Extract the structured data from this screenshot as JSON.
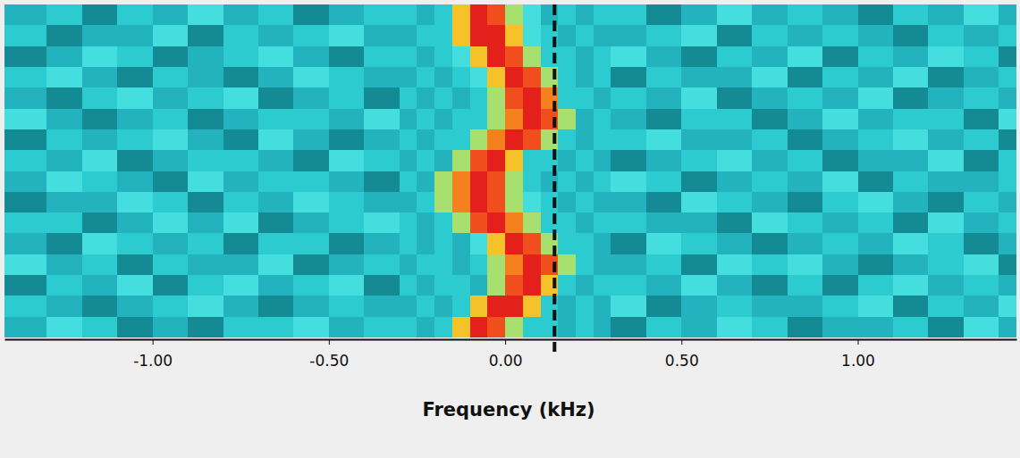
{
  "chart_data": {
    "type": "heatmap",
    "x_label": "Frequency (kHz)",
    "xlim": [
      -1.42,
      1.45
    ],
    "xticks": [
      {
        "value": -1,
        "label": "-1.00"
      },
      {
        "value": -0.5,
        "label": "-0.50"
      },
      {
        "value": 0,
        "label": "0.00"
      },
      {
        "value": 0.5,
        "label": "0.50"
      },
      {
        "value": 1,
        "label": "1.00"
      }
    ],
    "ylim": [
      0,
      16
    ],
    "tick_labels": "x",
    "color_range": [
      0,
      10
    ],
    "vline": 0.14,
    "x_edges": [
      -1.42,
      -1.3,
      -1.2,
      -1.1,
      -1.0,
      -0.9,
      -0.8,
      -0.7,
      -0.6,
      -0.5,
      -0.4,
      -0.3,
      -0.25,
      -0.2,
      -0.15,
      -0.1,
      -0.05,
      0,
      0.05,
      0.1,
      0.15,
      0.2,
      0.25,
      0.3,
      0.4,
      0.5,
      0.6,
      0.7,
      0.8,
      0.9,
      1.0,
      1.1,
      1.2,
      1.3,
      1.4,
      1.45
    ],
    "z": [
      [
        2,
        3,
        1,
        3,
        2,
        4,
        2,
        3,
        1,
        2,
        3,
        3,
        2,
        3,
        7,
        10,
        9,
        5,
        4,
        2,
        3,
        2,
        3,
        3,
        1,
        2,
        4,
        2,
        3,
        2,
        1,
        3,
        2,
        4,
        2
      ],
      [
        3,
        1,
        2,
        2,
        4,
        1,
        3,
        2,
        3,
        4,
        2,
        2,
        3,
        3,
        7,
        10,
        10,
        7,
        4,
        3,
        2,
        3,
        2,
        2,
        3,
        4,
        1,
        3,
        2,
        3,
        2,
        1,
        3,
        2,
        3
      ],
      [
        1,
        2,
        4,
        3,
        1,
        2,
        3,
        4,
        2,
        1,
        3,
        3,
        2,
        3,
        4,
        7,
        10,
        9,
        5,
        3,
        3,
        2,
        3,
        4,
        2,
        1,
        3,
        2,
        4,
        1,
        3,
        2,
        4,
        3,
        1
      ],
      [
        3,
        4,
        2,
        1,
        3,
        2,
        1,
        2,
        4,
        3,
        2,
        2,
        3,
        2,
        3,
        4,
        7,
        10,
        9,
        5,
        3,
        2,
        3,
        1,
        3,
        2,
        2,
        4,
        1,
        3,
        2,
        4,
        1,
        2,
        3
      ],
      [
        2,
        1,
        3,
        4,
        2,
        3,
        4,
        1,
        2,
        3,
        1,
        3,
        2,
        3,
        2,
        3,
        5,
        9,
        10,
        8,
        3,
        3,
        2,
        3,
        2,
        4,
        1,
        2,
        3,
        2,
        4,
        1,
        2,
        3,
        2
      ],
      [
        4,
        2,
        1,
        2,
        3,
        1,
        2,
        3,
        3,
        2,
        4,
        2,
        3,
        2,
        3,
        3,
        5,
        8,
        10,
        9,
        5,
        2,
        3,
        2,
        1,
        3,
        3,
        1,
        2,
        4,
        2,
        3,
        3,
        1,
        4
      ],
      [
        1,
        3,
        2,
        3,
        4,
        2,
        1,
        4,
        2,
        1,
        2,
        3,
        2,
        3,
        3,
        5,
        8,
        10,
        9,
        5,
        3,
        2,
        3,
        3,
        4,
        2,
        2,
        3,
        1,
        2,
        3,
        4,
        2,
        3,
        1
      ],
      [
        3,
        2,
        4,
        1,
        2,
        3,
        3,
        2,
        1,
        4,
        3,
        2,
        3,
        2,
        5,
        9,
        10,
        7,
        3,
        3,
        2,
        3,
        2,
        1,
        2,
        3,
        4,
        2,
        3,
        1,
        2,
        2,
        4,
        1,
        3
      ],
      [
        2,
        4,
        3,
        2,
        1,
        4,
        2,
        3,
        3,
        2,
        1,
        3,
        2,
        5,
        8,
        10,
        9,
        5,
        3,
        2,
        3,
        2,
        3,
        4,
        3,
        1,
        2,
        3,
        2,
        4,
        1,
        3,
        2,
        2,
        3
      ],
      [
        1,
        2,
        2,
        4,
        3,
        1,
        3,
        2,
        4,
        3,
        2,
        2,
        3,
        5,
        8,
        10,
        9,
        5,
        4,
        3,
        2,
        3,
        2,
        2,
        1,
        4,
        3,
        2,
        1,
        3,
        4,
        2,
        1,
        3,
        2
      ],
      [
        3,
        3,
        1,
        2,
        4,
        2,
        4,
        1,
        2,
        3,
        4,
        3,
        2,
        3,
        5,
        9,
        10,
        8,
        5,
        3,
        3,
        2,
        3,
        3,
        2,
        2,
        1,
        4,
        3,
        2,
        3,
        1,
        4,
        2,
        3
      ],
      [
        2,
        1,
        4,
        3,
        2,
        3,
        1,
        3,
        3,
        1,
        2,
        3,
        2,
        3,
        2,
        4,
        7,
        10,
        9,
        5,
        3,
        3,
        2,
        1,
        4,
        3,
        2,
        1,
        2,
        3,
        2,
        4,
        3,
        1,
        2
      ],
      [
        4,
        2,
        3,
        1,
        3,
        2,
        2,
        4,
        1,
        2,
        3,
        2,
        3,
        3,
        2,
        3,
        5,
        8,
        10,
        9,
        5,
        3,
        2,
        2,
        3,
        1,
        4,
        3,
        4,
        2,
        1,
        2,
        3,
        4,
        1
      ],
      [
        1,
        3,
        2,
        4,
        1,
        3,
        4,
        2,
        3,
        4,
        1,
        3,
        2,
        3,
        3,
        2,
        5,
        9,
        10,
        7,
        3,
        2,
        3,
        3,
        2,
        4,
        2,
        1,
        3,
        1,
        3,
        4,
        2,
        3,
        2
      ],
      [
        3,
        2,
        1,
        2,
        3,
        4,
        2,
        1,
        2,
        3,
        2,
        2,
        3,
        2,
        3,
        7,
        10,
        10,
        7,
        3,
        2,
        3,
        2,
        4,
        1,
        2,
        3,
        2,
        2,
        3,
        4,
        1,
        3,
        2,
        4
      ],
      [
        2,
        4,
        3,
        1,
        2,
        1,
        3,
        3,
        4,
        2,
        3,
        3,
        2,
        3,
        7,
        10,
        9,
        5,
        3,
        3,
        2,
        3,
        2,
        1,
        3,
        2,
        4,
        3,
        1,
        2,
        2,
        3,
        1,
        4,
        2
      ]
    ]
  }
}
